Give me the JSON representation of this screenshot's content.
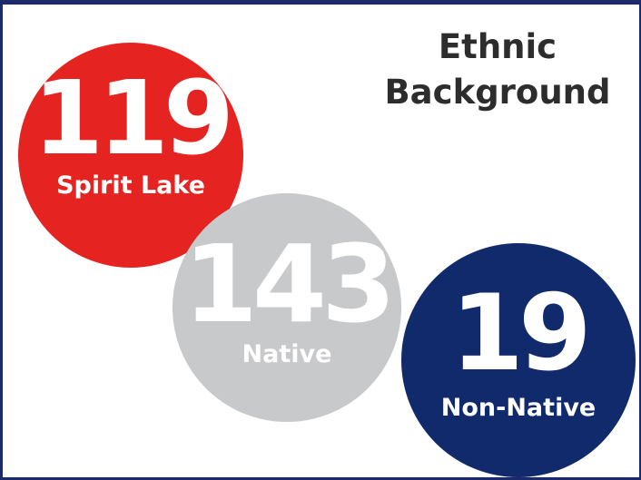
{
  "title": {
    "line1": "Ethnic",
    "line2": "Background"
  },
  "stats": [
    {
      "value": "119",
      "label": "Spirit Lake",
      "color": "#e52421"
    },
    {
      "value": "143",
      "label": "Native",
      "color": "#c8c9cb"
    },
    {
      "value": "19",
      "label": "Non-Native",
      "color": "#112a6c"
    }
  ],
  "colors": {
    "frame": "#1b2a6b",
    "title_text": "#2d2d2d",
    "circle_text": "#ffffff"
  }
}
